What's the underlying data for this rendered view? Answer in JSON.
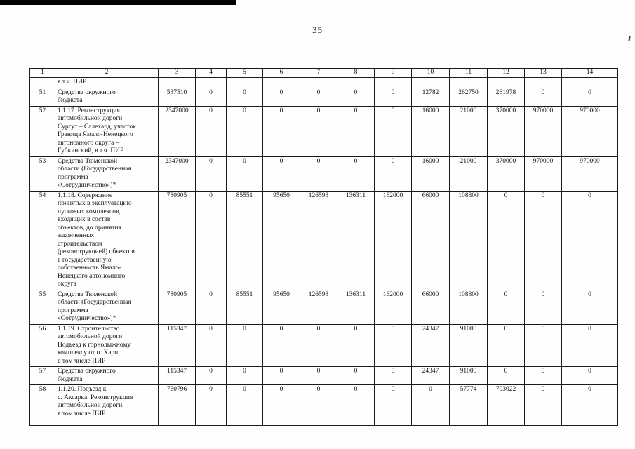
{
  "page": {
    "number": "35"
  },
  "table": {
    "columns": [
      "1",
      "2",
      "3",
      "4",
      "5",
      "6",
      "7",
      "8",
      "9",
      "10",
      "11",
      "12",
      "13",
      "14"
    ],
    "rows": [
      {
        "num": "",
        "name": "в т.ч. ПИР",
        "values": [
          "",
          "",
          "",
          "",
          "",
          "",
          "",
          "",
          "",
          "",
          "",
          ""
        ]
      },
      {
        "num": "51",
        "name": "Средства окружного\nбюджета",
        "values": [
          "537510",
          "0",
          "0",
          "0",
          "0",
          "0",
          "0",
          "12782",
          "262750",
          "261978",
          "0",
          "0"
        ]
      },
      {
        "num": "52",
        "name": "1.1.17. Реконструкция\nавтомобильной дороги\nСургут – Салехард, участок\nГраница Ямало-Ненецкого\nавтономного округа –\nГубкинский, в т.ч. ПИР",
        "values": [
          "2347000",
          "0",
          "0",
          "0",
          "0",
          "0",
          "0",
          "16000",
          "21000",
          "370000",
          "970000",
          "970000"
        ]
      },
      {
        "num": "53",
        "name": "Средства Тюменской\nобласти (Государственная\nпрограмма\n«Сотрудничество»)*",
        "values": [
          "2347000",
          "0",
          "0",
          "0",
          "0",
          "0",
          "0",
          "16000",
          "21000",
          "370000",
          "970000",
          "970000"
        ]
      },
      {
        "num": "54",
        "name": "1.1.18. Содержание\nпринятых в эксплуатацию\nпусковых комплексов,\nвходящих в состав\nобъектов, до принятия\nзаконченных\nстроительством\n(реконструкцией) объектов\nв государственную\nсобственность Ямало-\nНенецкого автономного\nокруга",
        "values": [
          "780905",
          "0",
          "85551",
          "95650",
          "126593",
          "136311",
          "162000",
          "66000",
          "108800",
          "0",
          "0",
          "0"
        ]
      },
      {
        "num": "55",
        "name": "Средства Тюменской\nобласти (Государственная\nпрограмма\n«Сотрудничество»)*",
        "values": [
          "780905",
          "0",
          "85551",
          "95650",
          "126593",
          "136311",
          "162000",
          "66000",
          "108800",
          "0",
          "0",
          "0"
        ]
      },
      {
        "num": "56",
        "name": "1.1.19. Строительство\nавтомобильной дороги\nПодъезд к горнолыжному\nкомплексу от п. Харп,\nв том числе ПИР",
        "values": [
          "115347",
          "0",
          "0",
          "0",
          "0",
          "0",
          "0",
          "24347",
          "91000",
          "0",
          "0",
          "0"
        ]
      },
      {
        "num": "57",
        "name": "Средства окружного\nбюджета",
        "values": [
          "115347",
          "0",
          "0",
          "0",
          "0",
          "0",
          "0",
          "24347",
          "91000",
          "0",
          "0",
          "0"
        ]
      },
      {
        "num": "58",
        "name": "1.1.20. Подъезд к\nс. Аксарка. Реконструкция\nавтомобильной дороги,\nв том числе ПИР",
        "values": [
          "760796",
          "0",
          "0",
          "0",
          "0",
          "0",
          "0",
          "0",
          "57774",
          "703022",
          "0",
          "0"
        ]
      }
    ]
  }
}
